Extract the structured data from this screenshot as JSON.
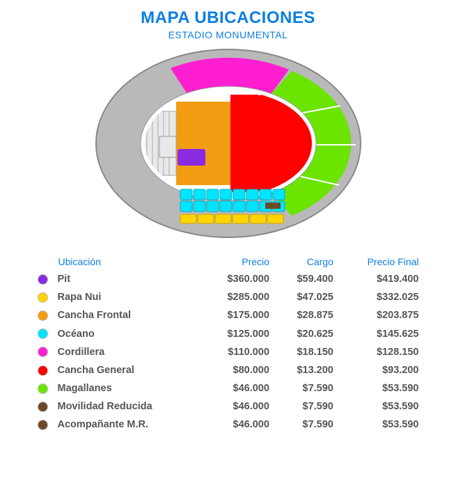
{
  "title": "MAPA UBICACIONES",
  "subtitle": "ESTADIO MONUMENTAL",
  "accent_color": "#0b7ee4",
  "headers": {
    "ubicacion": "Ubicación",
    "precio": "Precio",
    "cargo": "Cargo",
    "precio_final": "Precio Final"
  },
  "rows": [
    {
      "color": "#8a2be2",
      "label": "Pit",
      "precio": "$360.000",
      "cargo": "$59.400",
      "final": "$419.400"
    },
    {
      "color": "#ffd400",
      "label": "Rapa Nui",
      "precio": "$285.000",
      "cargo": "$47.025",
      "final": "$332.025"
    },
    {
      "color": "#f39c12",
      "label": "Cancha Frontal",
      "precio": "$175.000",
      "cargo": "$28.875",
      "final": "$203.875"
    },
    {
      "color": "#00e5ff",
      "label": "Océano",
      "precio": "$125.000",
      "cargo": "$20.625",
      "final": "$145.625"
    },
    {
      "color": "#ff1fd1",
      "label": "Cordillera",
      "precio": "$110.000",
      "cargo": "$18.150",
      "final": "$128.150"
    },
    {
      "color": "#ff0000",
      "label": "Cancha General",
      "precio": "$80.000",
      "cargo": "$13.200",
      "final": "$93.200"
    },
    {
      "color": "#6be400",
      "label": "Magallanes",
      "precio": "$46.000",
      "cargo": "$7.590",
      "final": "$53.590"
    },
    {
      "color": "#6b4a2a",
      "label": "Movilidad Reducida",
      "precio": "$46.000",
      "cargo": "$7.590",
      "final": "$53.590"
    },
    {
      "color": "#6b4a2a",
      "label": "Acompañante M.R.",
      "precio": "$46.000",
      "cargo": "$7.590",
      "final": "$53.590"
    }
  ],
  "map": {
    "outer_fill": "#b9b9b9",
    "outer_stroke": "#888",
    "inner_oval_fill": "#ffffff",
    "inner_oval_stroke": "#999",
    "cordillera": "#ff1fd1",
    "magallanes": "#6be400",
    "field_bg": "#ffffff",
    "cancha_frontal": "#f39c12",
    "cancha_general": "#ff0000",
    "pit": "#8a2be2",
    "stage_fill": "#e9e9e9",
    "stage_stroke": "#aaaaaa",
    "oceano": "#00e5ff",
    "oceano_stroke": "#0aa8bd",
    "rapa_nui": "#ffd400",
    "rapa_stroke": "#c9a500",
    "mr": "#6b4a2a"
  }
}
